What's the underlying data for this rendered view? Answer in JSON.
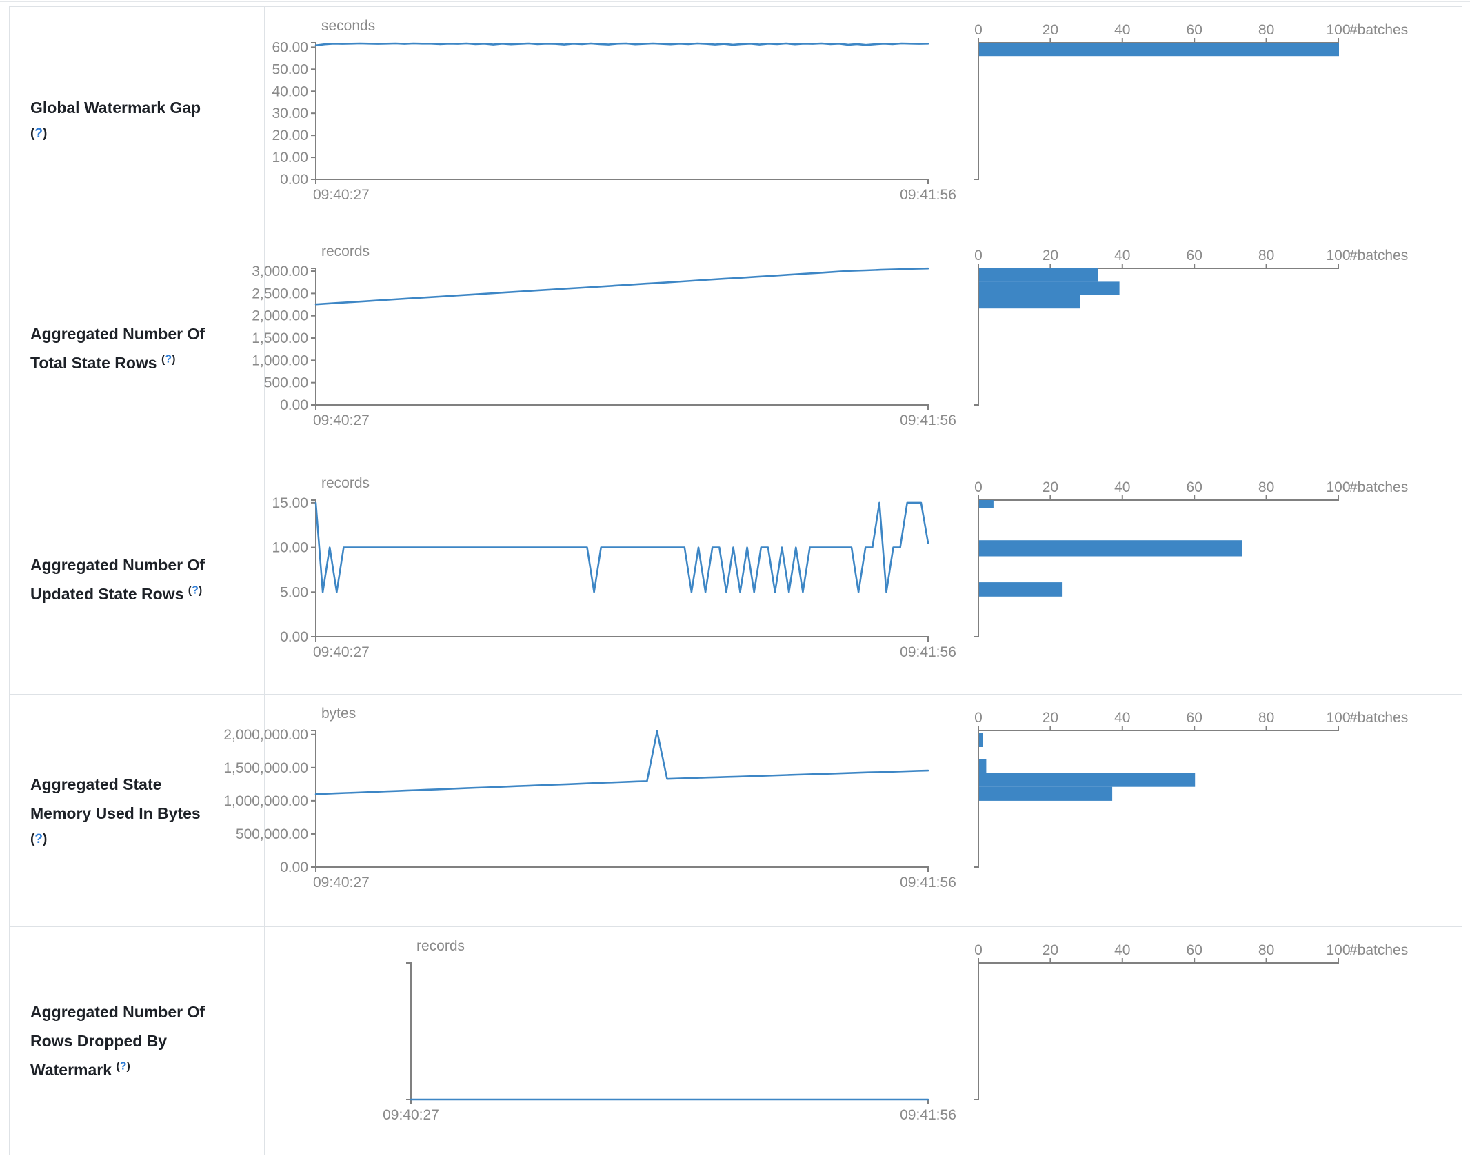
{
  "page": {
    "batches_axis_label": "#batches",
    "batch_ticks": [
      "0",
      "20",
      "40",
      "60",
      "80",
      "100"
    ],
    "batch_axis_max": 100,
    "time_start": "09:40:27",
    "time_end": "09:41:56",
    "accent_color": "#3d86c5",
    "axis_color": "#808080",
    "tick_text_color": "#8a8a8a",
    "help_symbol_open": "(",
    "help_symbol_q": "?",
    "help_symbol_close": ")"
  },
  "rows": [
    {
      "label_lines": [
        "Global Watermark Gap"
      ],
      "help_placement": "block",
      "unit": "seconds",
      "timeline": {
        "type": "line",
        "ymax": 62,
        "yticks": [
          {
            "v": 60,
            "label": "60.00"
          },
          {
            "v": 50,
            "label": "50.00"
          },
          {
            "v": 40,
            "label": "40.00"
          },
          {
            "v": 30,
            "label": "30.00"
          },
          {
            "v": 20,
            "label": "20.00"
          },
          {
            "v": 10,
            "label": "10.00"
          },
          {
            "v": 0,
            "label": "0.00"
          }
        ],
        "x_range": [
          "09:40:27",
          "09:41:56"
        ],
        "values": [
          60.8,
          61.3,
          61.6,
          61.5,
          61.6,
          61.7,
          61.6,
          61.5,
          61.6,
          61.7,
          61.5,
          61.7,
          61.6,
          61.6,
          61.4,
          61.6,
          61.5,
          61.7,
          61.4,
          61.6,
          61.2,
          61.6,
          61.3,
          61.5,
          61.7,
          61.4,
          61.6,
          61.5,
          61.2,
          61.6,
          61.4,
          61.7,
          61.4,
          61.2,
          61.6,
          61.7,
          61.3,
          61.5,
          61.7,
          61.5,
          61.3,
          61.6,
          61.4,
          61.7,
          61.5,
          61.2,
          61.5,
          61.1,
          61.4,
          61.6,
          61.2,
          61.6,
          61.4,
          61.7,
          61.3,
          61.6,
          61.5,
          61.7,
          61.4,
          61.6,
          61.1,
          61.4,
          61.0,
          61.3,
          61.6,
          61.4,
          61.7,
          61.6,
          61.5,
          61.6
        ]
      },
      "histogram": {
        "type": "bar",
        "bars": [
          {
            "count": 100,
            "v0": 56,
            "v1": 62
          }
        ]
      }
    },
    {
      "label_lines": [
        "Aggregated Number Of",
        "Total State Rows"
      ],
      "help_placement": "inline",
      "unit": "records",
      "timeline": {
        "type": "line",
        "ymax": 3063,
        "yticks": [
          {
            "v": 3000,
            "label": "3,000.00"
          },
          {
            "v": 2500,
            "label": "2,500.00"
          },
          {
            "v": 2000,
            "label": "2,000.00"
          },
          {
            "v": 1500,
            "label": "1,500.00"
          },
          {
            "v": 1000,
            "label": "1,000.00"
          },
          {
            "v": 500,
            "label": "500.00"
          },
          {
            "v": 0,
            "label": "0.00"
          }
        ],
        "x_range": [
          "09:40:27",
          "09:41:56"
        ],
        "values": [
          2255,
          2278,
          2300,
          2322,
          2345,
          2367,
          2389,
          2410,
          2432,
          2455,
          2477,
          2499,
          2520,
          2542,
          2565,
          2587,
          2610,
          2630,
          2652,
          2675,
          2697,
          2719,
          2740,
          2762,
          2785,
          2807,
          2830,
          2850,
          2872,
          2895,
          2917,
          2939,
          2960,
          2982,
          3005,
          3017,
          3030,
          3042,
          3052,
          3060
        ]
      },
      "histogram": {
        "type": "bar",
        "bars": [
          {
            "count": 33,
            "v0": 2763,
            "v1": 3063
          },
          {
            "count": 39,
            "v0": 2463,
            "v1": 2763
          },
          {
            "count": 28,
            "v0": 2163,
            "v1": 2463
          }
        ]
      }
    },
    {
      "label_lines": [
        "Aggregated Number Of",
        "Updated State Rows"
      ],
      "help_placement": "inline",
      "unit": "records",
      "timeline": {
        "type": "line",
        "ymax": 15.3,
        "yticks": [
          {
            "v": 15,
            "label": "15.00"
          },
          {
            "v": 10,
            "label": "10.00"
          },
          {
            "v": 5,
            "label": "5.00"
          },
          {
            "v": 0,
            "label": "0.00"
          }
        ],
        "x_range": [
          "09:40:27",
          "09:41:56"
        ],
        "values": [
          15,
          5,
          10,
          5,
          10,
          10,
          10,
          10,
          10,
          10,
          10,
          10,
          10,
          10,
          10,
          10,
          10,
          10,
          10,
          10,
          10,
          10,
          10,
          10,
          10,
          10,
          10,
          10,
          10,
          10,
          10,
          10,
          10,
          10,
          10,
          10,
          10,
          10,
          10,
          10,
          5,
          10,
          10,
          10,
          10,
          10,
          10,
          10,
          10,
          10,
          10,
          10,
          10,
          10,
          5,
          10,
          5,
          10,
          10,
          5,
          10,
          5,
          10,
          5,
          10,
          10,
          5,
          10,
          5,
          10,
          5,
          10,
          10,
          10,
          10,
          10,
          10,
          10,
          5,
          10,
          10,
          15,
          5,
          10,
          10,
          15,
          15,
          15,
          10.5
        ]
      },
      "histogram": {
        "type": "bar",
        "bars": [
          {
            "count": 4,
            "v0": 14.4,
            "v1": 15.3
          },
          {
            "count": 73,
            "v0": 9.0,
            "v1": 10.8
          },
          {
            "count": 23,
            "v0": 4.5,
            "v1": 6.1
          }
        ]
      }
    },
    {
      "label_lines": [
        "Aggregated State",
        "Memory Used In Bytes"
      ],
      "help_placement": "block",
      "unit": "bytes",
      "timeline": {
        "type": "line",
        "ymax": 2060000,
        "yticks": [
          {
            "v": 2000000,
            "label": "2,000,000.00"
          },
          {
            "v": 1500000,
            "label": "1,500,000.00"
          },
          {
            "v": 1000000,
            "label": "1,000,000.00"
          },
          {
            "v": 500000,
            "label": "500,000.00"
          },
          {
            "v": 0,
            "label": "0.00"
          }
        ],
        "x_range": [
          "09:40:27",
          "09:41:56"
        ],
        "values": [
          1100000,
          1106000,
          1112000,
          1118000,
          1124000,
          1130000,
          1136000,
          1142000,
          1148000,
          1154000,
          1160000,
          1166000,
          1172000,
          1178000,
          1184000,
          1190000,
          1196000,
          1202000,
          1208000,
          1214000,
          1220000,
          1226000,
          1232000,
          1238000,
          1244000,
          1250000,
          1256000,
          1262000,
          1268000,
          1274000,
          1280000,
          1286000,
          1292000,
          1296000,
          2050000,
          1330000,
          1335000,
          1340000,
          1345000,
          1350000,
          1355000,
          1360000,
          1364000,
          1369000,
          1374000,
          1379000,
          1384000,
          1389000,
          1394000,
          1398000,
          1403000,
          1408000,
          1413000,
          1418000,
          1423000,
          1428000,
          1432000,
          1437000,
          1442000,
          1447000,
          1452000,
          1456000
        ]
      },
      "histogram": {
        "type": "bar",
        "bars": [
          {
            "count": 1,
            "v0": 1810000,
            "v1": 2020000
          },
          {
            "count": 2,
            "v0": 1420000,
            "v1": 1630000
          },
          {
            "count": 60,
            "v0": 1210000,
            "v1": 1420000
          },
          {
            "count": 37,
            "v0": 1000000,
            "v1": 1210000
          }
        ]
      }
    },
    {
      "label_lines": [
        "Aggregated Number Of",
        "Rows Dropped By",
        "Watermark"
      ],
      "help_placement": "inline",
      "unit": "records",
      "timeline": {
        "type": "line",
        "ymax": 1,
        "yticks": [],
        "x_range": [
          "09:40:27",
          "09:41:56"
        ],
        "values": [
          0,
          0
        ]
      },
      "histogram": {
        "type": "bar",
        "bars": []
      }
    }
  ]
}
